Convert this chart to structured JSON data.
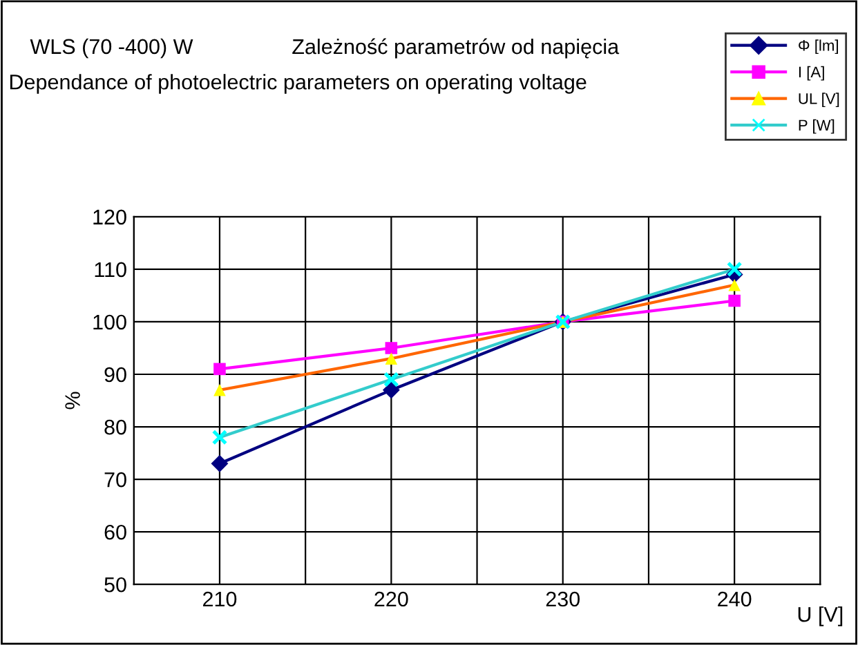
{
  "chart_data": {
    "type": "line",
    "title": "Zależność parametrów od napięcia",
    "subtitle": "Dependance of photoelectric parameters on operating voltage",
    "annotations": [
      "WLS (70 -400) W"
    ],
    "xlabel": "U [V]",
    "ylabel": "%",
    "x": [
      210,
      220,
      230,
      240
    ],
    "series": [
      {
        "name": "Φ [lm]",
        "color": "#000080",
        "colors": [
          "#000080",
          "#000080",
          "#000080",
          "#000080"
        ],
        "marker": "diamond",
        "values": [
          73,
          87,
          100,
          109
        ]
      },
      {
        "name": "I [A]",
        "color": "#ff00ff",
        "colors": [
          "#ff00ff",
          "#ff00ff",
          "#ff00ff",
          "#ff00ff"
        ],
        "marker": "square",
        "values": [
          91,
          95,
          100,
          104
        ]
      },
      {
        "name": "UL [V]",
        "color": "#ff6600",
        "colors": [
          "#ffff00",
          "#ffff00",
          "#ffff00",
          "#ffff00"
        ],
        "marker": "triangle",
        "values": [
          87,
          93,
          100,
          107
        ]
      },
      {
        "name": "P [W]",
        "color": "#33cccc",
        "colors": [
          "#00ffff",
          "#00ffff",
          "#00ffff",
          "#00ffff"
        ],
        "marker": "cross",
        "values": [
          78,
          89,
          100,
          110
        ]
      }
    ],
    "xlim": [
      205,
      245
    ],
    "xticks": [
      {
        "value": 205,
        "label": null
      },
      210,
      {
        "value": 215,
        "label": null
      },
      220,
      {
        "value": 225,
        "label": null
      },
      230,
      {
        "value": 235,
        "label": null
      },
      240,
      {
        "value": 245,
        "label": null
      }
    ],
    "ylim": [
      50,
      120
    ],
    "yticks": [
      50,
      60,
      70,
      80,
      90,
      100,
      110,
      120
    ],
    "grid": true,
    "legend": "top right",
    "line_style": "solid"
  }
}
